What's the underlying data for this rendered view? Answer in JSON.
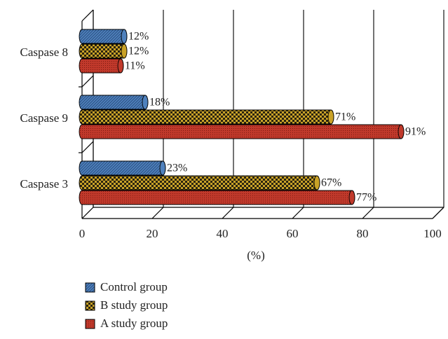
{
  "chart_data": {
    "type": "bar",
    "orientation": "horizontal",
    "categories": [
      "Caspase 8",
      "Caspase 9",
      "Caspase 3"
    ],
    "series": [
      {
        "name": "Control group",
        "values": [
          12,
          18,
          23
        ],
        "labels": [
          "12%",
          "18%",
          "23%"
        ],
        "color": "#4f81bd",
        "pattern": "diagonal-hatch"
      },
      {
        "name": "B study group",
        "values": [
          12,
          71,
          67
        ],
        "labels": [
          "12%",
          "71%",
          "67%"
        ],
        "color": "#c9a227",
        "pattern": "checker"
      },
      {
        "name": "A study group",
        "values": [
          11,
          91,
          77
        ],
        "labels": [
          "11%",
          "91%",
          "77%"
        ],
        "color": "#c0392b",
        "pattern": "fine-dots"
      }
    ],
    "xlabel": "(%)",
    "ylabel": "",
    "xlim": [
      0,
      100
    ],
    "x_ticks": [
      "0",
      "20",
      "40",
      "60",
      "80",
      "100"
    ],
    "grid": "vertical",
    "style": "3d-cylinder",
    "legend_position": "bottom-left"
  }
}
